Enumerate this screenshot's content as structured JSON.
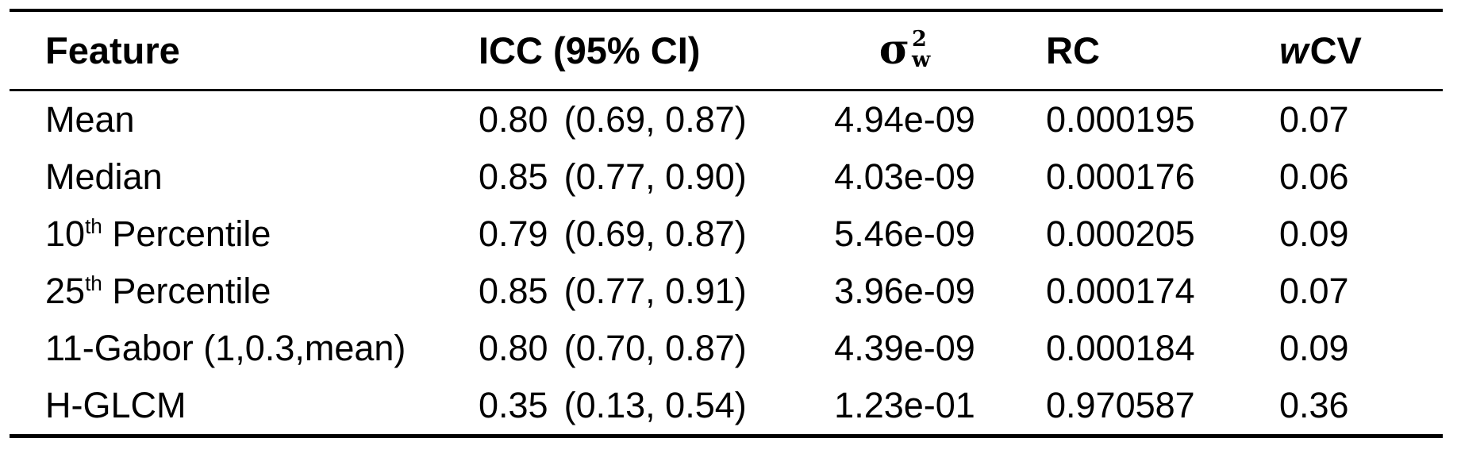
{
  "colors": {
    "background": "#ffffff",
    "text": "#000000",
    "rule": "#000000"
  },
  "table": {
    "header": {
      "feature": "Feature",
      "icc": "ICC (95% CI)",
      "sigma_base": "σ",
      "sigma_sup": "2",
      "sigma_sub": "w",
      "rc": "RC",
      "wcv_w": "w",
      "wcv_cv": "CV"
    },
    "rows": [
      {
        "feature_base": "Mean",
        "feature_sup": "",
        "feature_rest": "",
        "icc": "0.80",
        "ci": "(0.69, 0.87)",
        "sigma2w": "4.94e-09",
        "rc": "0.000195",
        "wcv": "0.07"
      },
      {
        "feature_base": "Median",
        "feature_sup": "",
        "feature_rest": "",
        "icc": "0.85",
        "ci": "(0.77, 0.90)",
        "sigma2w": "4.03e-09",
        "rc": "0.000176",
        "wcv": "0.06"
      },
      {
        "feature_base": "10",
        "feature_sup": "th",
        "feature_rest": " Percentile",
        "icc": "0.79",
        "ci": "(0.69, 0.87)",
        "sigma2w": "5.46e-09",
        "rc": "0.000205",
        "wcv": "0.09"
      },
      {
        "feature_base": "25",
        "feature_sup": "th",
        "feature_rest": " Percentile",
        "icc": "0.85",
        "ci": "(0.77, 0.91)",
        "sigma2w": "3.96e-09",
        "rc": "0.000174",
        "wcv": "0.07"
      },
      {
        "feature_base": "11-Gabor (1,0.3,mean)",
        "feature_sup": "",
        "feature_rest": "",
        "icc": "0.80",
        "ci": "(0.70, 0.87)",
        "sigma2w": "4.39e-09",
        "rc": "0.000184",
        "wcv": "0.09"
      },
      {
        "feature_base": "H-GLCM",
        "feature_sup": "",
        "feature_rest": "",
        "icc": "0.35",
        "ci": "(0.13, 0.54)",
        "sigma2w": "1.23e-01",
        "rc": "0.970587",
        "wcv": "0.36"
      }
    ]
  }
}
